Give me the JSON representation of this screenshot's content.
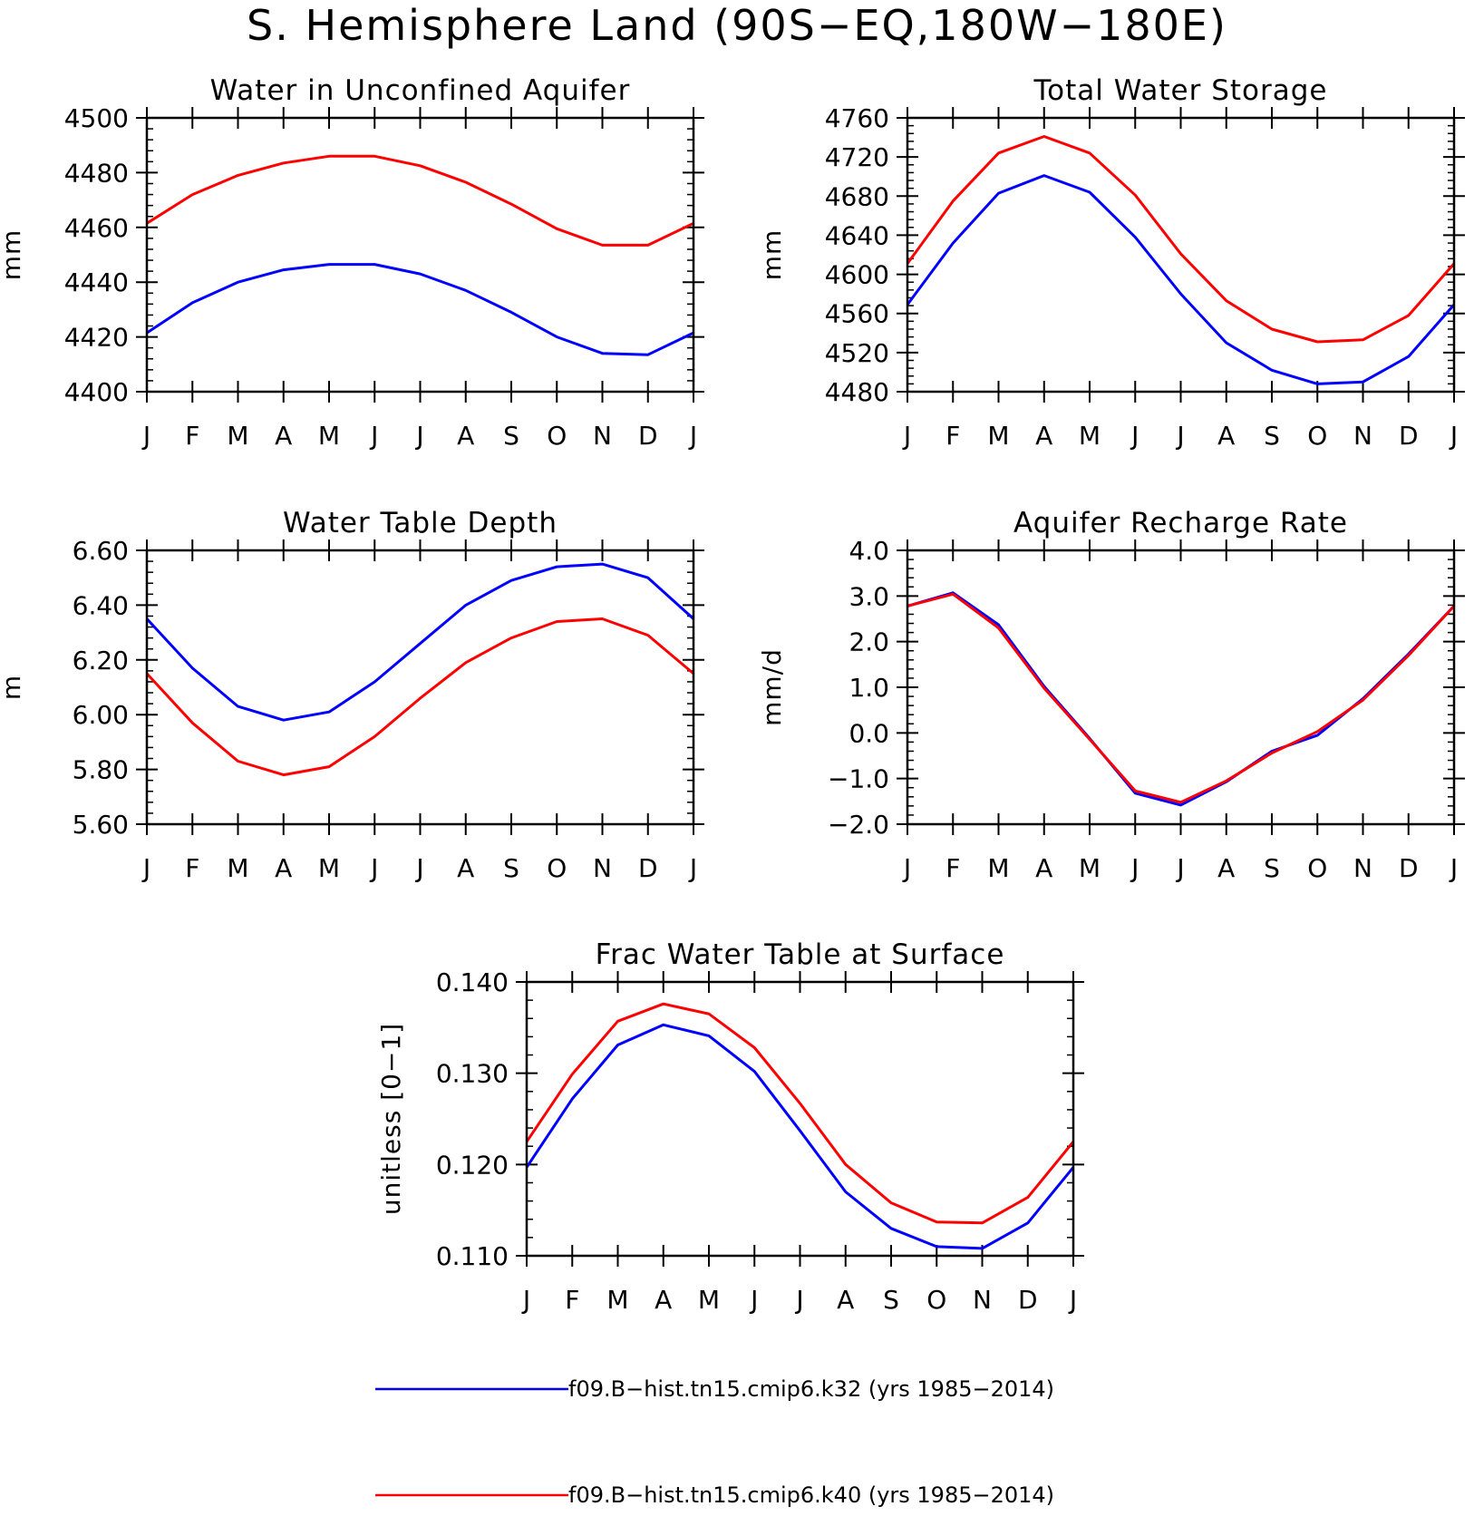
{
  "title": "S. Hemisphere Land (90S−EQ,180W−180E)",
  "months": [
    "J",
    "F",
    "M",
    "A",
    "M",
    "J",
    "J",
    "A",
    "S",
    "O",
    "N",
    "D",
    "J"
  ],
  "legend": [
    {
      "label": "f09.B−hist.tn15.cmip6.k32 (yrs 1985−2014)",
      "color": "#0000ff"
    },
    {
      "label": "f09.B−hist.tn15.cmip6.k40 (yrs 1985−2014)",
      "color": "#ff0000"
    }
  ],
  "chart_data": [
    {
      "type": "line",
      "title": "Water in Unconfined Aquifer",
      "ylabel": "mm",
      "ylim": [
        4400,
        4500
      ],
      "yticks": [
        4400,
        4420,
        4440,
        4460,
        4480,
        4500
      ],
      "ytick_labels": [
        "4400",
        "4420",
        "4440",
        "4460",
        "4480",
        "4500"
      ],
      "series": [
        {
          "name": "f09.B−hist.tn15.cmip6.k32 (yrs 1985−2014)",
          "color": "#0000ff",
          "values": [
            4421.5,
            4432.5,
            4440,
            4444.5,
            4446.5,
            4446.5,
            4443,
            4437,
            4429,
            4420,
            4414,
            4413.5,
            4421.5
          ]
        },
        {
          "name": "f09.B−hist.tn15.cmip6.k40 (yrs 1985−2014)",
          "color": "#ff0000",
          "values": [
            4461.5,
            4472,
            4479,
            4483.5,
            4486,
            4486,
            4482.5,
            4476.5,
            4468.5,
            4459.5,
            4453.5,
            4453.5,
            4461.5
          ]
        }
      ]
    },
    {
      "type": "line",
      "title": "Total Water Storage",
      "ylabel": "mm",
      "ylim": [
        4480,
        4760
      ],
      "yticks": [
        4480,
        4520,
        4560,
        4600,
        4640,
        4680,
        4720,
        4760
      ],
      "ytick_labels": [
        "4480",
        "4520",
        "4560",
        "4600",
        "4640",
        "4680",
        "4720",
        "4760"
      ],
      "series": [
        {
          "name": "f09.B−hist.tn15.cmip6.k32 (yrs 1985−2014)",
          "color": "#0000ff",
          "values": [
            4569,
            4632,
            4683,
            4701,
            4684,
            4638,
            4580,
            4530,
            4502,
            4488,
            4490,
            4516,
            4569
          ]
        },
        {
          "name": "f09.B−hist.tn15.cmip6.k40 (yrs 1985−2014)",
          "color": "#ff0000",
          "values": [
            4611,
            4675,
            4724,
            4741,
            4724,
            4681,
            4621,
            4573,
            4544,
            4531,
            4533,
            4558,
            4611
          ]
        }
      ]
    },
    {
      "type": "line",
      "title": "Water Table Depth",
      "ylabel": "m",
      "ylim": [
        5.6,
        6.6
      ],
      "yticks": [
        5.6,
        5.8,
        6.0,
        6.2,
        6.4,
        6.6
      ],
      "ytick_labels": [
        "5.60",
        "5.80",
        "6.00",
        "6.20",
        "6.40",
        "6.60"
      ],
      "series": [
        {
          "name": "f09.B−hist.tn15.cmip6.k32 (yrs 1985−2014)",
          "color": "#0000ff",
          "values": [
            6.35,
            6.17,
            6.03,
            5.98,
            6.01,
            6.12,
            6.26,
            6.4,
            6.49,
            6.54,
            6.55,
            6.5,
            6.35
          ]
        },
        {
          "name": "f09.B−hist.tn15.cmip6.k40 (yrs 1985−2014)",
          "color": "#ff0000",
          "values": [
            6.15,
            5.97,
            5.83,
            5.78,
            5.81,
            5.92,
            6.06,
            6.19,
            6.28,
            6.34,
            6.35,
            6.29,
            6.15
          ]
        }
      ]
    },
    {
      "type": "line",
      "title": "Aquifer Recharge Rate",
      "ylabel": "mm/d",
      "ylim": [
        -2.0,
        4.0
      ],
      "yticks": [
        -2.0,
        -1.0,
        0.0,
        1.0,
        2.0,
        3.0,
        4.0
      ],
      "ytick_labels": [
        "−2.0",
        "−1.0",
        "0.0",
        "1.0",
        "2.0",
        "3.0",
        "4.0"
      ],
      "series": [
        {
          "name": "f09.B−hist.tn15.cmip6.k32 (yrs 1985−2014)",
          "color": "#0000ff",
          "values": [
            2.78,
            3.07,
            2.37,
            1.02,
            -0.12,
            -1.32,
            -1.58,
            -1.07,
            -0.4,
            -0.05,
            0.75,
            1.73,
            2.78
          ]
        },
        {
          "name": "f09.B−hist.tn15.cmip6.k40 (yrs 1985−2014)",
          "color": "#ff0000",
          "values": [
            2.78,
            3.04,
            2.3,
            0.98,
            -0.14,
            -1.27,
            -1.52,
            -1.05,
            -0.44,
            0.03,
            0.72,
            1.7,
            2.78
          ]
        }
      ]
    },
    {
      "type": "line",
      "title": "Frac Water Table at Surface",
      "ylabel": "unitless [0−1]",
      "ylim": [
        0.11,
        0.14
      ],
      "yticks": [
        0.11,
        0.12,
        0.13,
        0.14
      ],
      "ytick_labels": [
        "0.110",
        "0.120",
        "0.130",
        "0.140"
      ],
      "series": [
        {
          "name": "f09.B−hist.tn15.cmip6.k32 (yrs 1985−2014)",
          "color": "#0000ff",
          "values": [
            0.1197,
            0.1272,
            0.1331,
            0.1353,
            0.1341,
            0.1302,
            0.1237,
            0.117,
            0.113,
            0.111,
            0.1108,
            0.1136,
            0.1197
          ]
        },
        {
          "name": "f09.B−hist.tn15.cmip6.k40 (yrs 1985−2014)",
          "color": "#ff0000",
          "values": [
            0.1225,
            0.1299,
            0.1357,
            0.1376,
            0.1365,
            0.1328,
            0.1267,
            0.12,
            0.1158,
            0.1137,
            0.1136,
            0.1164,
            0.1225
          ]
        }
      ]
    }
  ]
}
